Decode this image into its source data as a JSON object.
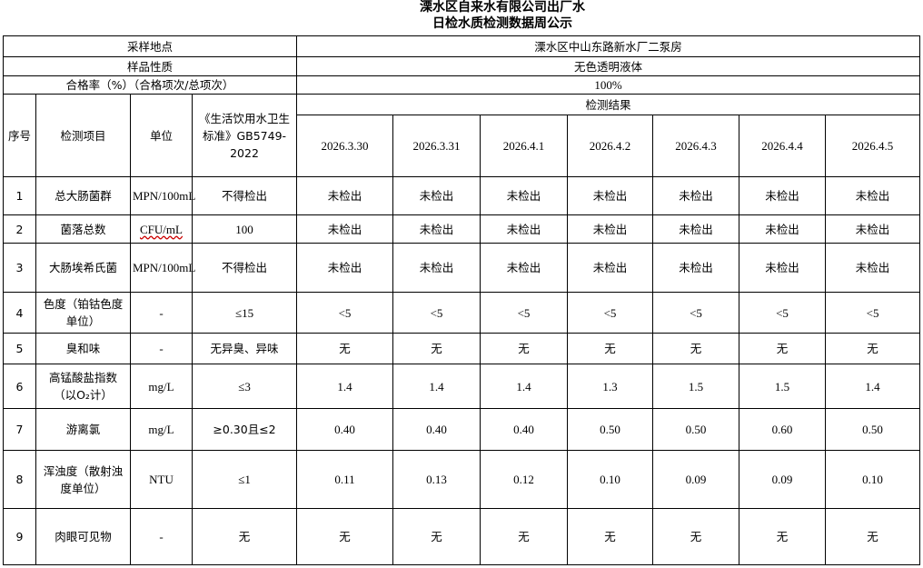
{
  "title": {
    "line1": "溧水区自来水有限公司出厂水",
    "line2": "日检水质检测数据周公示"
  },
  "info": [
    {
      "label": "采样地点",
      "value": "溧水区中山东路新水厂二泵房"
    },
    {
      "label": "样品性质",
      "value": "无色透明液体"
    },
    {
      "label": "合格率（%）（合格项次/总项次）",
      "value": "100%"
    }
  ],
  "header": {
    "index": "序号",
    "item": "检测项目",
    "unit": "单位",
    "standard": "《生活饮用水卫生标准》GB5749-2022",
    "results": "检测结果",
    "dates": [
      "2026.3.30",
      "2026.3.31",
      "2026.4.1",
      "2026.4.2",
      "2026.4.3",
      "2026.4.4",
      "2026.4.5"
    ]
  },
  "rows": [
    {
      "index": "1",
      "item": "总大肠菌群",
      "unit": "MPN/100mL",
      "standard": "不得检出",
      "values": [
        "未检出",
        "未检出",
        "未检出",
        "未检出",
        "未检出",
        "未检出",
        "未检出"
      ]
    },
    {
      "index": "2",
      "item": "菌落总数",
      "unit": "CFU/mL",
      "standard": "100",
      "values": [
        "未检出",
        "未检出",
        "未检出",
        "未检出",
        "未检出",
        "未检出",
        "未检出"
      ]
    },
    {
      "index": "3",
      "item": "大肠埃希氏菌",
      "unit": "MPN/100mL",
      "standard": "不得检出",
      "values": [
        "未检出",
        "未检出",
        "未检出",
        "未检出",
        "未检出",
        "未检出",
        "未检出"
      ]
    },
    {
      "index": "4",
      "item": "色度（铂钴色度单位）",
      "unit": "-",
      "standard": "≤15",
      "values": [
        "<5",
        "<5",
        "<5",
        "<5",
        "<5",
        "<5",
        "<5"
      ]
    },
    {
      "index": "5",
      "item": "臭和味",
      "unit": "-",
      "standard": "无异臭、异味",
      "values": [
        "无",
        "无",
        "无",
        "无",
        "无",
        "无",
        "无"
      ]
    },
    {
      "index": "6",
      "item": "高锰酸盐指数（以O₂计）",
      "unit": "mg/L",
      "standard": "≤3",
      "values": [
        "1.4",
        "1.4",
        "1.4",
        "1.3",
        "1.5",
        "1.5",
        "1.4"
      ]
    },
    {
      "index": "7",
      "item": "游离氯",
      "unit": "mg/L",
      "standard": "≥0.30且≤2",
      "values": [
        "0.40",
        "0.40",
        "0.40",
        "0.50",
        "0.50",
        "0.60",
        "0.50"
      ]
    },
    {
      "index": "8",
      "item": "浑浊度（散射浊度单位）",
      "unit": "NTU",
      "standard": "≤1",
      "values": [
        "0.11",
        "0.13",
        "0.12",
        "0.10",
        "0.09",
        "0.09",
        "0.10"
      ]
    },
    {
      "index": "9",
      "item": "肉眼可见物",
      "unit": "-",
      "standard": "无",
      "values": [
        "无",
        "无",
        "无",
        "无",
        "无",
        "无",
        "无"
      ]
    }
  ]
}
